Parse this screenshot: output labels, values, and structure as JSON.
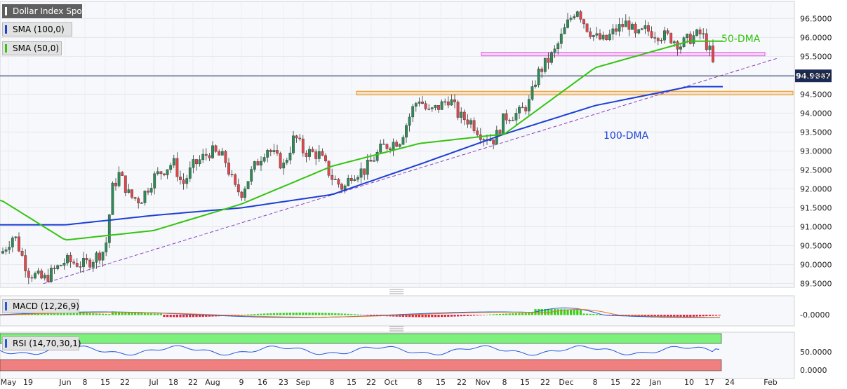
{
  "chart_data": [
    {
      "type": "line",
      "title": "Dollar Index Spot",
      "legend": [
        "Dollar Index Spot",
        "SMA (100,0)",
        "SMA (50,0)"
      ],
      "last_price_label": "94.9847",
      "y_ticks": [
        "96.5000",
        "96.0000",
        "95.5000",
        "95.0000",
        "94.5000",
        "94.0000",
        "93.5000",
        "93.0000",
        "92.5000",
        "92.0000",
        "91.5000",
        "91.0000",
        "90.5000",
        "90.0000",
        "89.5000"
      ],
      "ylim": [
        89.4,
        96.95
      ],
      "x_ticks": [
        "May",
        "19",
        "Jun",
        "8",
        "15",
        "22",
        "Jul",
        "18",
        "22",
        "Aug",
        "9",
        "16",
        "23",
        "Sep",
        "8",
        "15",
        "22",
        "Oct",
        "8",
        "15",
        "22",
        "Nov",
        "8",
        "15",
        "22",
        "Dec",
        "8",
        "15",
        "22",
        "Jan",
        "10",
        "17",
        "24",
        "Feb"
      ],
      "annotations": [
        "50-DMA",
        "100-DMA"
      ],
      "colors": {
        "candle_up": "#2e8b57",
        "candle_down": "#e0474c",
        "sma50": "#34c410",
        "sma100": "#1c3fd4",
        "resistance": "#e86ee8",
        "support": "#f0a030",
        "trendline": "#8a3fc0"
      },
      "series": [
        {
          "name": "Dollar Index Spot",
          "x": [
            "May",
            "Jun",
            "Jul",
            "Aug",
            "Sep",
            "Oct",
            "Nov",
            "Dec",
            "Jan"
          ],
          "values": [
            90.3,
            90.1,
            92.3,
            92.8,
            92.5,
            94.2,
            94.3,
            96.1,
            94.98
          ]
        },
        {
          "name": "SMA (100,0)",
          "x": [
            "May",
            "Jun",
            "Jul",
            "Aug",
            "Sep",
            "Oct",
            "Nov",
            "Dec",
            "Jan"
          ],
          "values": [
            91.05,
            91.05,
            91.3,
            91.5,
            91.85,
            92.65,
            93.45,
            94.2,
            94.7
          ]
        },
        {
          "name": "SMA (50,0)",
          "x": [
            "May",
            "Jun",
            "Jul",
            "Aug",
            "Sep",
            "Oct",
            "Nov",
            "Dec",
            "Jan"
          ],
          "values": [
            91.7,
            90.65,
            90.9,
            91.6,
            92.6,
            93.2,
            93.45,
            95.2,
            95.9
          ]
        }
      ],
      "levels": {
        "resistance": 95.55,
        "support": 94.52,
        "trendline_start": 89.5,
        "trendline_end": 95.45
      }
    },
    {
      "type": "bar",
      "title": "MACD (12,26,9)",
      "y_ticks": [
        "-0.0000"
      ]
    },
    {
      "type": "line",
      "title": "RSI (14,70,30,1)",
      "y_ticks": [
        "50.0000",
        "0.0000"
      ],
      "overbought": 70,
      "oversold": 30
    }
  ]
}
